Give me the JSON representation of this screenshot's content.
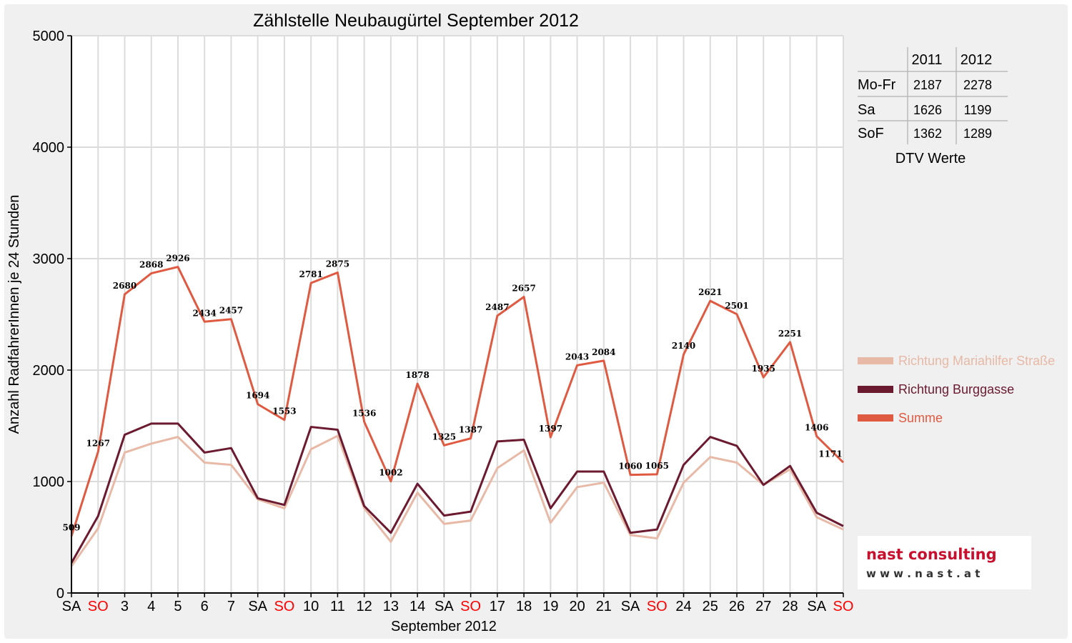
{
  "chart_data": {
    "type": "line",
    "title": "Zählstelle Neubaugürtel September 2012",
    "xlabel": "September 2012",
    "ylabel": "Anzahl RadfahrerInnen je 24 Stunden",
    "ylim": [
      0,
      5000
    ],
    "y_ticks": [
      "0",
      "1000",
      "2000",
      "3000",
      "4000",
      "5000"
    ],
    "grid": true,
    "legend_position": "right",
    "categories": [
      "SA",
      "SO",
      "3",
      "4",
      "5",
      "6",
      "7",
      "SA",
      "SO",
      "10",
      "11",
      "12",
      "13",
      "14",
      "SA",
      "SO",
      "17",
      "18",
      "19",
      "20",
      "21",
      "SA",
      "SO",
      "24",
      "25",
      "26",
      "27",
      "28",
      "SA",
      "SO"
    ],
    "weekend_color": "#ff0000",
    "series": [
      {
        "name": "Richtung Mariahilfer Straße",
        "color": "#e7b9a6",
        "values": [
          240,
          580,
          1260,
          1340,
          1400,
          1170,
          1150,
          840,
          760,
          1290,
          1410,
          760,
          460,
          900,
          620,
          650,
          1120,
          1280,
          630,
          950,
          990,
          520,
          490,
          990,
          1220,
          1170,
          970,
          1110,
          680,
          570
        ]
      },
      {
        "name": "Richtung Burggasse",
        "color": "#6b1a30",
        "values": [
          270,
          690,
          1420,
          1520,
          1520,
          1260,
          1300,
          850,
          790,
          1490,
          1465,
          780,
          540,
          980,
          695,
          730,
          1360,
          1375,
          760,
          1090,
          1090,
          540,
          570,
          1150,
          1400,
          1320,
          970,
          1140,
          720,
          600
        ]
      },
      {
        "name": "Summe",
        "color": "#e05a42",
        "values": [
          509,
          1267,
          2680,
          2868,
          2926,
          2434,
          2457,
          1694,
          1553,
          2781,
          2875,
          1536,
          1002,
          1878,
          1325,
          1387,
          2487,
          2657,
          1397,
          2043,
          2084,
          1060,
          1065,
          2140,
          2621,
          2501,
          1935,
          2251,
          1406,
          1171
        ],
        "labels": [
          "509",
          "1267",
          "2680",
          "2868",
          "2926",
          "2434",
          "2457",
          "1694",
          "1553",
          "2781",
          "2875",
          "1536",
          "1002",
          "1878",
          "1325",
          "1387",
          "2487",
          "2657",
          "1397",
          "2043",
          "2084",
          "1060",
          "1065",
          "2140",
          "2621",
          "2501",
          "1935",
          "2251",
          "1406",
          "1171"
        ]
      }
    ]
  },
  "dtv_table": {
    "col_headers": [
      "2011",
      "2012"
    ],
    "rows": [
      {
        "label": "Mo-Fr",
        "v2011": "2187",
        "v2012": "2278"
      },
      {
        "label": "Sa",
        "v2011": "1626",
        "v2012": "1199"
      },
      {
        "label": "SoF",
        "v2011": "1362",
        "v2012": "1289"
      }
    ],
    "caption": "DTV Werte"
  },
  "logo": {
    "name": "nast consulting",
    "url": "w w w . n a s t . a t"
  }
}
